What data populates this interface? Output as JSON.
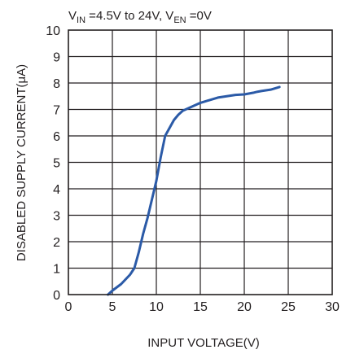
{
  "chart_data": {
    "type": "line",
    "title": {
      "v_symbol": "V",
      "v_in_sub": "IN",
      "in_range_text": " =4.5V to 24V, ",
      "v_en_sub": "EN",
      "en_value_text": " =0V"
    },
    "xlabel": "INPUT VOLTAGE(V)",
    "ylabel": "DISABLED SUPPLY CURRENT(μA)",
    "xlim": [
      0,
      30
    ],
    "ylim": [
      0,
      10
    ],
    "x_ticks": [
      "0",
      "5",
      "10",
      "15",
      "20",
      "25",
      "30"
    ],
    "y_ticks": [
      "0",
      "1",
      "2",
      "3",
      "4",
      "5",
      "6",
      "7",
      "8",
      "9",
      "10"
    ],
    "grid": true,
    "line_color": "#2b5aa7",
    "series": [
      {
        "x": [
          4.5,
          5.0,
          6.0,
          7.0,
          7.5,
          8.0,
          8.5,
          9.0,
          9.5,
          10.0,
          10.5,
          11.0,
          11.5,
          12.0,
          12.5,
          13.0,
          14.0,
          15.0,
          16.0,
          17.0,
          18.0,
          19.0,
          20.0,
          20.5,
          21.0,
          21.5,
          22.0,
          23.0,
          24.0
        ],
        "y": [
          0.0,
          0.15,
          0.4,
          0.75,
          1.0,
          1.6,
          2.3,
          2.9,
          3.6,
          4.3,
          5.2,
          6.0,
          6.3,
          6.6,
          6.8,
          6.95,
          7.1,
          7.25,
          7.35,
          7.45,
          7.5,
          7.55,
          7.57,
          7.6,
          7.63,
          7.67,
          7.7,
          7.75,
          7.85
        ]
      }
    ]
  }
}
